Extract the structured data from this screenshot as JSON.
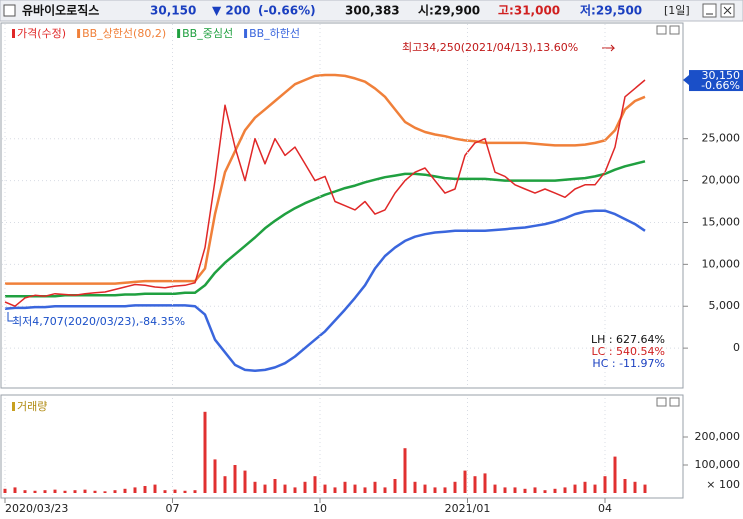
{
  "header": {
    "name": "유바이오로직스",
    "price": "30,150",
    "change": "▼ 200",
    "change_pct": "(-0.66%)",
    "volume": "300,383",
    "open": "시:29,900",
    "high": "고:31,000",
    "low": "저:29,500",
    "period": "[1일]"
  },
  "chart_data": [
    {
      "type": "line",
      "legend": [
        "가격(수정)",
        "BB_상한선(80,2)",
        "BB_중심선",
        "BB_하한선"
      ],
      "x": [
        0,
        4,
        8,
        12,
        16,
        20,
        24,
        28,
        32,
        36,
        40,
        44,
        48,
        52,
        56,
        60,
        64,
        68,
        72,
        76,
        80,
        84,
        88,
        92,
        96,
        100,
        104,
        108,
        112,
        116,
        120,
        124,
        128,
        132,
        136,
        140,
        144,
        148,
        152,
        156,
        160,
        164,
        168,
        172,
        176,
        180,
        184,
        188,
        192,
        196,
        200,
        204,
        208,
        212,
        216,
        220,
        224,
        228,
        232,
        236,
        240,
        244,
        248,
        252,
        256
      ],
      "xlim": [
        0,
        270
      ],
      "ylim": [
        -4760,
        38810
      ],
      "yticks": [
        0,
        {
          "value": 5000,
          "label": "5,000"
        },
        {
          "value": 10000,
          "label": "10,000"
        },
        {
          "value": 15000,
          "label": "15,000"
        },
        {
          "value": 20000,
          "label": "20,000"
        },
        {
          "value": 25000,
          "label": "25,000"
        }
      ],
      "grid": true,
      "series": [
        {
          "name": "가격(수정)",
          "color": "#e02828",
          "values": [
            5500,
            5000,
            6000,
            6300,
            6200,
            6500,
            6400,
            6300,
            6500,
            6600,
            6700,
            7000,
            7300,
            7600,
            7500,
            7300,
            7200,
            7400,
            7500,
            7800,
            12000,
            20000,
            29000,
            24000,
            20000,
            25000,
            22000,
            25000,
            23000,
            24000,
            22000,
            20000,
            20500,
            17500,
            17000,
            16500,
            17500,
            16000,
            16500,
            18500,
            20000,
            21000,
            21500,
            20000,
            18500,
            19000,
            23000,
            24500,
            25000,
            21000,
            20500,
            19500,
            19000,
            18500,
            19000,
            18500,
            18000,
            19000,
            19500,
            19500,
            21000,
            24000,
            30000,
            31000,
            32000
          ]
        },
        {
          "name": "BB_상한선(80,2)",
          "color": "#f0803a",
          "values": [
            7700,
            7700,
            7700,
            7700,
            7700,
            7700,
            7700,
            7700,
            7700,
            7700,
            7700,
            7700,
            7800,
            7900,
            8000,
            8000,
            8000,
            8000,
            8000,
            8000,
            9500,
            16000,
            21000,
            23500,
            26000,
            27500,
            28500,
            29500,
            30500,
            31500,
            32000,
            32500,
            32600,
            32600,
            32500,
            32200,
            31800,
            31000,
            30000,
            28500,
            27000,
            26300,
            25800,
            25500,
            25300,
            25000,
            24800,
            24700,
            24500,
            24500,
            24500,
            24500,
            24500,
            24400,
            24300,
            24200,
            24200,
            24200,
            24300,
            24500,
            24800,
            26000,
            28500,
            29500,
            30000
          ]
        },
        {
          "name": "BB_중심선",
          "color": "#20a040",
          "values": [
            6200,
            6200,
            6200,
            6200,
            6200,
            6200,
            6300,
            6300,
            6300,
            6300,
            6300,
            6300,
            6400,
            6400,
            6500,
            6500,
            6500,
            6500,
            6600,
            6600,
            7500,
            9000,
            10200,
            11200,
            12200,
            13200,
            14300,
            15200,
            16000,
            16700,
            17300,
            17800,
            18300,
            18700,
            19100,
            19400,
            19800,
            20100,
            20400,
            20600,
            20800,
            20800,
            20700,
            20500,
            20300,
            20200,
            20200,
            20200,
            20200,
            20100,
            20000,
            20000,
            20000,
            20000,
            20000,
            20000,
            20100,
            20200,
            20300,
            20500,
            20800,
            21300,
            21700,
            22000,
            22300
          ]
        },
        {
          "name": "BB_하한선",
          "color": "#3a66dd",
          "values": [
            4700,
            4800,
            4800,
            4900,
            4900,
            5000,
            5000,
            5000,
            5000,
            5000,
            5000,
            5000,
            5000,
            5100,
            5100,
            5100,
            5100,
            5100,
            5100,
            5000,
            4000,
            1000,
            -500,
            -2000,
            -2600,
            -2700,
            -2600,
            -2300,
            -1800,
            -1000,
            0,
            1000,
            2000,
            3300,
            4600,
            6000,
            7500,
            9500,
            11000,
            12000,
            12800,
            13300,
            13600,
            13800,
            13900,
            14000,
            14000,
            14000,
            14000,
            14100,
            14200,
            14300,
            14400,
            14600,
            14800,
            15100,
            15500,
            16000,
            16300,
            16400,
            16400,
            16000,
            15400,
            14800,
            14000
          ]
        }
      ],
      "current_tag": [
        "30,150",
        "-0.66%"
      ],
      "annotations": [
        "최고34,250(2021/04/13),13.60%",
        "최저4,707(2020/03/23),-84.35%"
      ],
      "stats": [
        "LH : 627.64%",
        "LC : 540.54%",
        "HC : -11.97%"
      ]
    },
    {
      "type": "bar",
      "legend": [
        "거래량"
      ],
      "unit": "× 100",
      "x": [
        0,
        4,
        8,
        12,
        16,
        20,
        24,
        28,
        32,
        36,
        40,
        44,
        48,
        52,
        56,
        60,
        64,
        68,
        72,
        76,
        80,
        84,
        88,
        92,
        96,
        100,
        104,
        108,
        112,
        116,
        120,
        124,
        128,
        132,
        136,
        140,
        144,
        148,
        152,
        156,
        160,
        164,
        168,
        172,
        176,
        180,
        184,
        188,
        192,
        196,
        200,
        204,
        208,
        212,
        216,
        220,
        224,
        228,
        232,
        236,
        240,
        244,
        248,
        252,
        256
      ],
      "xlim": [
        0,
        270
      ],
      "xticks": [
        {
          "value": 0,
          "label": "2020/03/23"
        },
        {
          "value": 67,
          "label": "07"
        },
        {
          "value": 126,
          "label": "10"
        },
        {
          "value": 185,
          "label": "2021/01"
        },
        {
          "value": 240,
          "label": "04"
        }
      ],
      "ylim": [
        -14300,
        342900
      ],
      "yticks": [
        {
          "value": 100000,
          "label": "100,000"
        },
        {
          "value": 200000,
          "label": "200,000"
        }
      ],
      "color": "#e03030",
      "values": [
        15000,
        20000,
        10000,
        8000,
        10000,
        12000,
        8000,
        10000,
        12000,
        8000,
        6000,
        10000,
        15000,
        20000,
        25000,
        30000,
        10000,
        12000,
        8000,
        10000,
        290000,
        120000,
        60000,
        100000,
        80000,
        40000,
        30000,
        50000,
        30000,
        20000,
        40000,
        60000,
        30000,
        20000,
        40000,
        30000,
        20000,
        40000,
        20000,
        50000,
        160000,
        40000,
        30000,
        20000,
        20000,
        40000,
        80000,
        60000,
        70000,
        30000,
        20000,
        20000,
        15000,
        20000,
        10000,
        15000,
        20000,
        30000,
        40000,
        30000,
        60000,
        130000,
        50000,
        40000,
        30000
      ]
    }
  ]
}
